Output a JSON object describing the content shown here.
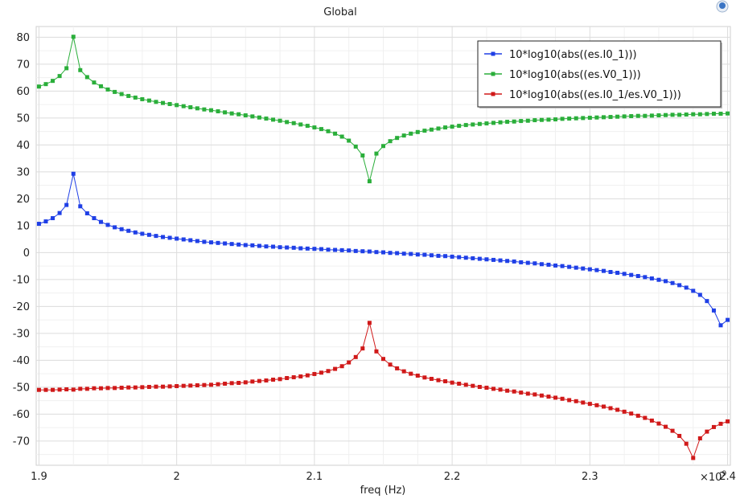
{
  "chart_data": {
    "type": "line",
    "title": "Global",
    "xlabel": "freq (Hz)",
    "ylabel": "",
    "x_multiplier_label": "×10",
    "x_multiplier_exponent": "9",
    "xlim": [
      1.898,
      2.402
    ],
    "ylim": [
      -79,
      84
    ],
    "x_ticks": [
      1.9,
      2.0,
      2.1,
      2.2,
      2.3,
      2.4
    ],
    "x_tick_labels": [
      "1.9",
      "2",
      "2.1",
      "2.2",
      "2.3",
      "2.4"
    ],
    "y_ticks": [
      80,
      70,
      60,
      50,
      40,
      30,
      20,
      10,
      0,
      -10,
      -20,
      -30,
      -40,
      -50,
      -60,
      -70
    ],
    "y_tick_labels": [
      "80",
      "70",
      "60",
      "50",
      "40",
      "30",
      "20",
      "10",
      "0",
      "-10",
      "-20",
      "-30",
      "-40",
      "-50",
      "-60",
      "-70"
    ],
    "grid": true,
    "legend_position": "top-right",
    "x": [
      1.9,
      1.905,
      1.91,
      1.915,
      1.92,
      1.925,
      1.93,
      1.935,
      1.94,
      1.945,
      1.95,
      1.955,
      1.96,
      1.965,
      1.97,
      1.975,
      1.98,
      1.985,
      1.99,
      1.995,
      2.0,
      2.005,
      2.01,
      2.015,
      2.02,
      2.025,
      2.03,
      2.035,
      2.04,
      2.045,
      2.05,
      2.055,
      2.06,
      2.065,
      2.07,
      2.075,
      2.08,
      2.085,
      2.09,
      2.095,
      2.1,
      2.105,
      2.11,
      2.115,
      2.12,
      2.125,
      2.13,
      2.135,
      2.14,
      2.145,
      2.15,
      2.155,
      2.16,
      2.165,
      2.17,
      2.175,
      2.18,
      2.185,
      2.19,
      2.195,
      2.2,
      2.205,
      2.21,
      2.215,
      2.22,
      2.225,
      2.23,
      2.235,
      2.24,
      2.245,
      2.25,
      2.255,
      2.26,
      2.265,
      2.27,
      2.275,
      2.28,
      2.285,
      2.29,
      2.295,
      2.3,
      2.305,
      2.31,
      2.315,
      2.32,
      2.325,
      2.33,
      2.335,
      2.34,
      2.345,
      2.35,
      2.355,
      2.36,
      2.365,
      2.37,
      2.375,
      2.38,
      2.385,
      2.39,
      2.395,
      2.4
    ],
    "series": [
      {
        "name": "10*log10(abs((es.I0_1)))",
        "color": "#1f3fe6",
        "values": [
          10.7,
          11.6,
          12.8,
          14.7,
          17.7,
          29.3,
          17.2,
          14.6,
          12.8,
          11.4,
          10.3,
          9.4,
          8.7,
          8.1,
          7.5,
          7.0,
          6.6,
          6.2,
          5.8,
          5.5,
          5.2,
          4.9,
          4.6,
          4.3,
          4.0,
          3.8,
          3.6,
          3.4,
          3.2,
          3.0,
          2.8,
          2.7,
          2.5,
          2.3,
          2.2,
          2.0,
          1.9,
          1.8,
          1.6,
          1.5,
          1.4,
          1.3,
          1.1,
          1.0,
          0.9,
          0.8,
          0.6,
          0.5,
          0.4,
          0.2,
          0.1,
          -0.1,
          -0.2,
          -0.4,
          -0.5,
          -0.7,
          -0.8,
          -1.0,
          -1.2,
          -1.3,
          -1.5,
          -1.7,
          -1.9,
          -2.1,
          -2.3,
          -2.5,
          -2.7,
          -2.9,
          -3.1,
          -3.3,
          -3.6,
          -3.8,
          -4.0,
          -4.3,
          -4.5,
          -4.8,
          -5.0,
          -5.3,
          -5.6,
          -5.9,
          -6.2,
          -6.5,
          -6.8,
          -7.2,
          -7.5,
          -7.9,
          -8.3,
          -8.7,
          -9.1,
          -9.6,
          -10.1,
          -10.6,
          -11.3,
          -12.1,
          -13.0,
          -14.2,
          -15.7,
          -18.0,
          -21.5,
          -27.0,
          -25.0
        ]
      },
      {
        "name": "10*log10(abs((es.V0_1)))",
        "color": "#2aae3a",
        "values": [
          61.7,
          62.6,
          63.8,
          65.6,
          68.5,
          80.2,
          67.8,
          65.2,
          63.2,
          61.8,
          60.6,
          59.7,
          58.9,
          58.2,
          57.6,
          57.0,
          56.5,
          56.0,
          55.6,
          55.2,
          54.8,
          54.4,
          54.0,
          53.6,
          53.2,
          52.9,
          52.5,
          52.1,
          51.7,
          51.4,
          51.0,
          50.6,
          50.2,
          49.8,
          49.4,
          49.0,
          48.5,
          48.1,
          47.6,
          47.1,
          46.5,
          45.9,
          45.1,
          44.2,
          43.1,
          41.6,
          39.4,
          36.1,
          26.5,
          36.8,
          39.6,
          41.4,
          42.6,
          43.5,
          44.2,
          44.8,
          45.3,
          45.7,
          46.1,
          46.5,
          46.8,
          47.1,
          47.4,
          47.6,
          47.8,
          48.0,
          48.2,
          48.4,
          48.6,
          48.7,
          48.9,
          49.0,
          49.2,
          49.3,
          49.4,
          49.5,
          49.7,
          49.8,
          49.9,
          50.0,
          50.1,
          50.2,
          50.3,
          50.4,
          50.5,
          50.6,
          50.7,
          50.8,
          50.8,
          50.9,
          51.0,
          51.1,
          51.2,
          51.2,
          51.3,
          51.4,
          51.4,
          51.5,
          51.6,
          51.6,
          51.7
        ]
      },
      {
        "name": "10*log10(abs((es.I0_1/es.V0_1)))",
        "color": "#d01919",
        "values": [
          -51.0,
          -51.0,
          -51.0,
          -50.9,
          -50.8,
          -50.9,
          -50.6,
          -50.6,
          -50.4,
          -50.4,
          -50.3,
          -50.3,
          -50.2,
          -50.1,
          -50.1,
          -50.0,
          -49.9,
          -49.8,
          -49.8,
          -49.7,
          -49.6,
          -49.5,
          -49.4,
          -49.3,
          -49.2,
          -49.1,
          -48.9,
          -48.7,
          -48.5,
          -48.4,
          -48.2,
          -47.9,
          -47.7,
          -47.5,
          -47.2,
          -47.0,
          -46.6,
          -46.3,
          -46.0,
          -45.6,
          -45.1,
          -44.6,
          -44.0,
          -43.2,
          -42.2,
          -40.8,
          -38.8,
          -35.6,
          -26.1,
          -36.7,
          -39.5,
          -41.6,
          -43.0,
          -44.1,
          -45.0,
          -45.7,
          -46.4,
          -46.9,
          -47.4,
          -47.8,
          -48.3,
          -48.7,
          -49.1,
          -49.5,
          -49.9,
          -50.2,
          -50.6,
          -50.9,
          -51.3,
          -51.6,
          -52.0,
          -52.4,
          -52.7,
          -53.1,
          -53.5,
          -53.9,
          -54.3,
          -54.8,
          -55.2,
          -55.7,
          -56.2,
          -56.7,
          -57.2,
          -57.8,
          -58.4,
          -59.1,
          -59.8,
          -60.6,
          -61.4,
          -62.4,
          -63.5,
          -64.7,
          -66.2,
          -68.1,
          -71.0,
          -76.3,
          -69.0,
          -66.5,
          -64.8,
          -63.6,
          -62.7
        ]
      }
    ]
  }
}
